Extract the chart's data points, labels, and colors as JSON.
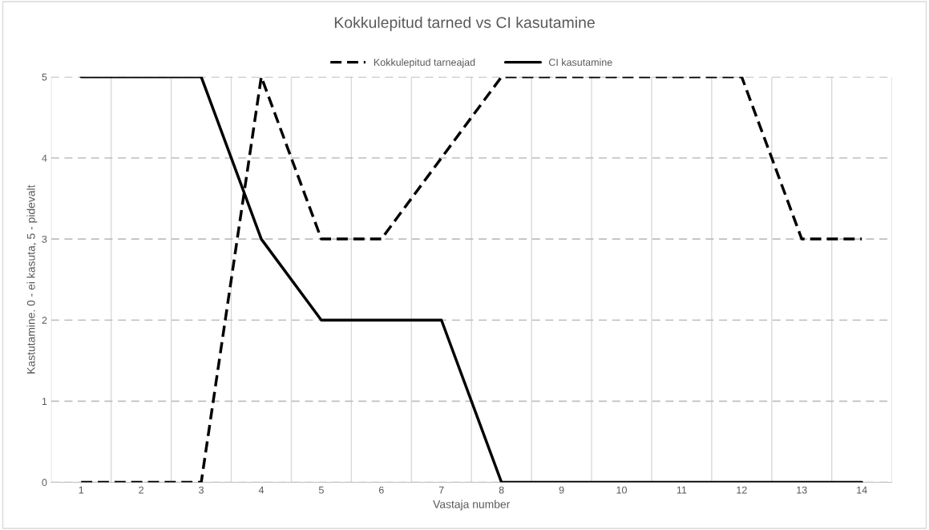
{
  "chart_data": {
    "type": "line",
    "title": "Kokkulepitud tarned vs CI kasutamine",
    "xlabel": "Vastaja number",
    "ylabel": "Kastutamine. 0 - ei kasuta, 5 - pidevalt",
    "categories": [
      "1",
      "2",
      "3",
      "4",
      "5",
      "6",
      "7",
      "8",
      "9",
      "10",
      "11",
      "12",
      "13",
      "14"
    ],
    "series": [
      {
        "name": "Kokkulepitud tarneajad",
        "color": "#000000",
        "line_style": "dashed",
        "values": [
          0,
          0,
          0,
          5,
          3,
          3,
          4,
          5,
          5,
          5,
          5,
          5,
          3,
          3
        ]
      },
      {
        "name": "CI kasutamine",
        "color": "#000000",
        "line_style": "solid",
        "values": [
          5,
          5,
          5,
          3,
          2,
          2,
          2,
          0,
          0,
          0,
          0,
          0,
          0,
          0
        ]
      }
    ],
    "ylim": [
      0,
      5
    ],
    "yticks": [
      0,
      1,
      2,
      3,
      4,
      5
    ],
    "grid": true,
    "legend": "top",
    "marker": "none"
  }
}
